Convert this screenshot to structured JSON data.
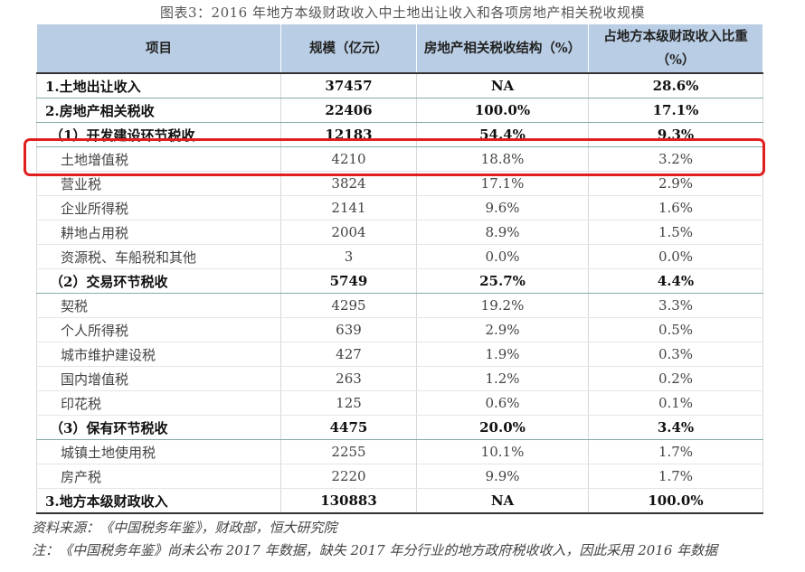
{
  "caption": "图表3：2016 年地方本级财政收入中土地出让收入和各项房地产相关税收规模",
  "columns": [
    "项目",
    "规模（亿元）",
    "房地产相关税收结构（%）",
    "占地方本级财政收入比重（%）"
  ],
  "rows": [
    {
      "item": "1.土地出让收入",
      "scale": "37457",
      "structure": "NA",
      "share": "28.6%",
      "kind": "main"
    },
    {
      "item": "2.房地产相关税收",
      "scale": "22406",
      "structure": "100.0%",
      "share": "17.1%",
      "kind": "main"
    },
    {
      "item": "（1）开发建设环节税收",
      "scale": "12183",
      "structure": "54.4%",
      "share": "9.3%",
      "kind": "group"
    },
    {
      "item": "土地增值税",
      "scale": "4210",
      "structure": "18.8%",
      "share": "3.2%",
      "kind": "sub"
    },
    {
      "item": "营业税",
      "scale": "3824",
      "structure": "17.1%",
      "share": "2.9%",
      "kind": "sub"
    },
    {
      "item": "企业所得税",
      "scale": "2141",
      "structure": "9.6%",
      "share": "1.6%",
      "kind": "sub"
    },
    {
      "item": "耕地占用税",
      "scale": "2004",
      "structure": "8.9%",
      "share": "1.5%",
      "kind": "sub"
    },
    {
      "item": "资源税、车船税和其他",
      "scale": "3",
      "structure": "0.0%",
      "share": "0.0%",
      "kind": "sub"
    },
    {
      "item": "（2）交易环节税收",
      "scale": "5749",
      "structure": "25.7%",
      "share": "4.4%",
      "kind": "group"
    },
    {
      "item": "契税",
      "scale": "4295",
      "structure": "19.2%",
      "share": "3.3%",
      "kind": "sub"
    },
    {
      "item": "个人所得税",
      "scale": "639",
      "structure": "2.9%",
      "share": "0.5%",
      "kind": "sub"
    },
    {
      "item": "城市维护建设税",
      "scale": "427",
      "structure": "1.9%",
      "share": "0.3%",
      "kind": "sub"
    },
    {
      "item": "国内增值税",
      "scale": "263",
      "structure": "1.2%",
      "share": "0.2%",
      "kind": "sub"
    },
    {
      "item": "印花税",
      "scale": "125",
      "structure": "0.6%",
      "share": "0.1%",
      "kind": "sub"
    },
    {
      "item": "（3）保有环节税收",
      "scale": "4475",
      "structure": "20.0%",
      "share": "3.4%",
      "kind": "group"
    },
    {
      "item": "城镇土地使用税",
      "scale": "2255",
      "structure": "10.1%",
      "share": "1.7%",
      "kind": "sub"
    },
    {
      "item": "房产税",
      "scale": "2220",
      "structure": "9.9%",
      "share": "1.7%",
      "kind": "sub"
    },
    {
      "item": "3.地方本级财政收入",
      "scale": "130883",
      "structure": "NA",
      "share": "100.0%",
      "kind": "main"
    }
  ],
  "source_note": "资料来源：《中国税务年鉴》，财政部，恒大研究院",
  "footnote": "注：《中国税务年鉴》尚未公布 2017 年数据，缺失 2017 年分行业的地方政府税收收入，因此采用 2016 年数据",
  "highlight_color": "#e02020",
  "header_bg": "#b9cde4"
}
